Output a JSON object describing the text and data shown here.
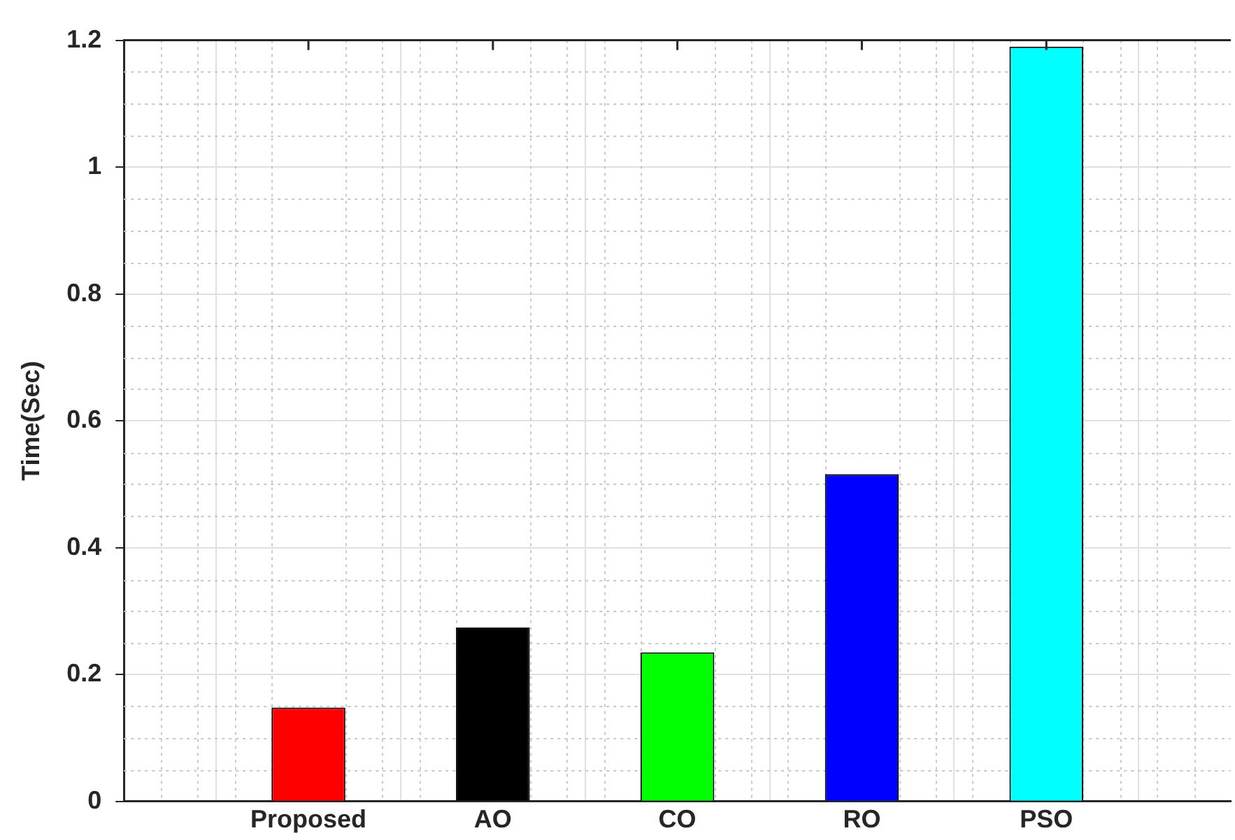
{
  "chart_data": {
    "type": "bar",
    "ylabel": "Time(Sec)",
    "categories": [
      "Proposed",
      "AO",
      "CO",
      "RO",
      "PSO"
    ],
    "values": [
      0.148,
      0.274,
      0.235,
      0.516,
      1.19
    ],
    "colors": [
      "#ff0000",
      "#000000",
      "#00ff00",
      "#0000ff",
      "#00ffff"
    ],
    "ylim": [
      0,
      1.2
    ],
    "yticks": [
      0,
      0.2,
      0.4,
      0.6,
      0.8,
      1,
      1.2
    ],
    "grid": true,
    "legend": false
  }
}
